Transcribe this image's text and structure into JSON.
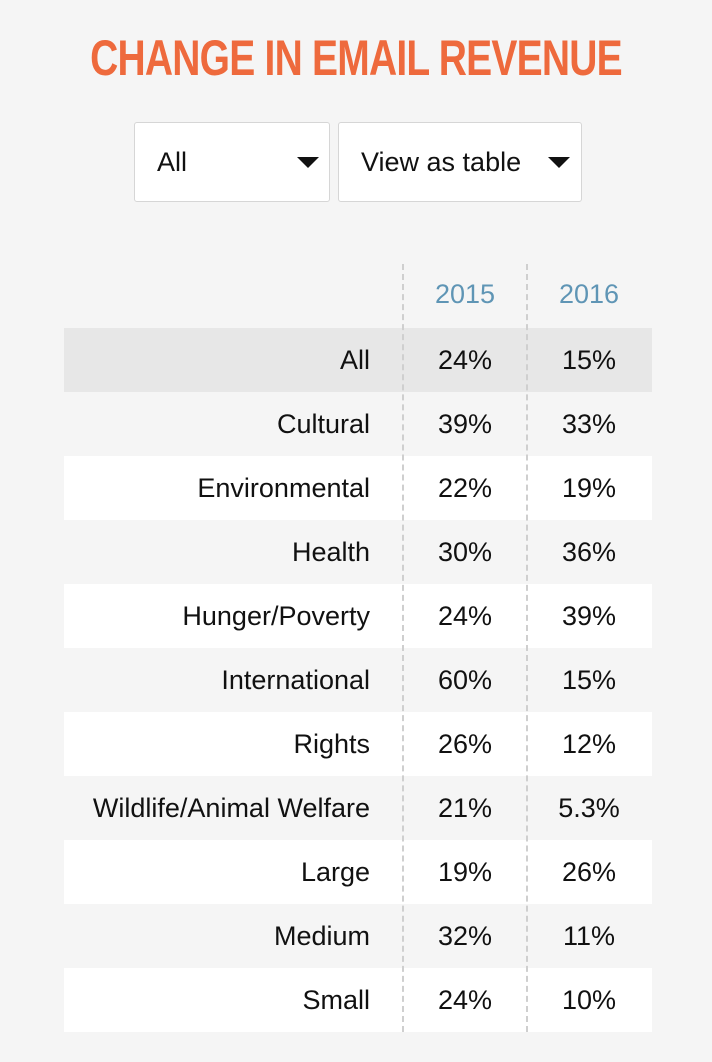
{
  "title": "CHANGE IN EMAIL REVENUE",
  "colors": {
    "title": "#ee6a3d",
    "column_header": "#5f95b5",
    "highlight_row": "#e7e7e7"
  },
  "filters": {
    "category": {
      "selected": "All",
      "icon": "caret-down-icon"
    },
    "view": {
      "selected": "View as table",
      "icon": "caret-down-icon"
    }
  },
  "table": {
    "columns": [
      "2015",
      "2016"
    ],
    "rows": [
      {
        "label": "All",
        "v2015": "24%",
        "v2016": "15%"
      },
      {
        "label": "Cultural",
        "v2015": "39%",
        "v2016": "33%"
      },
      {
        "label": "Environmental",
        "v2015": "22%",
        "v2016": "19%"
      },
      {
        "label": "Health",
        "v2015": "30%",
        "v2016": "36%"
      },
      {
        "label": "Hunger/Poverty",
        "v2015": "24%",
        "v2016": "39%"
      },
      {
        "label": "International",
        "v2015": "60%",
        "v2016": "15%"
      },
      {
        "label": "Rights",
        "v2015": "26%",
        "v2016": "12%"
      },
      {
        "label": "Wildlife/Animal Welfare",
        "v2015": "21%",
        "v2016": "5.3%"
      },
      {
        "label": "Large",
        "v2015": "19%",
        "v2016": "26%"
      },
      {
        "label": "Medium",
        "v2015": "32%",
        "v2016": "11%"
      },
      {
        "label": "Small",
        "v2015": "24%",
        "v2016": "10%"
      }
    ]
  }
}
